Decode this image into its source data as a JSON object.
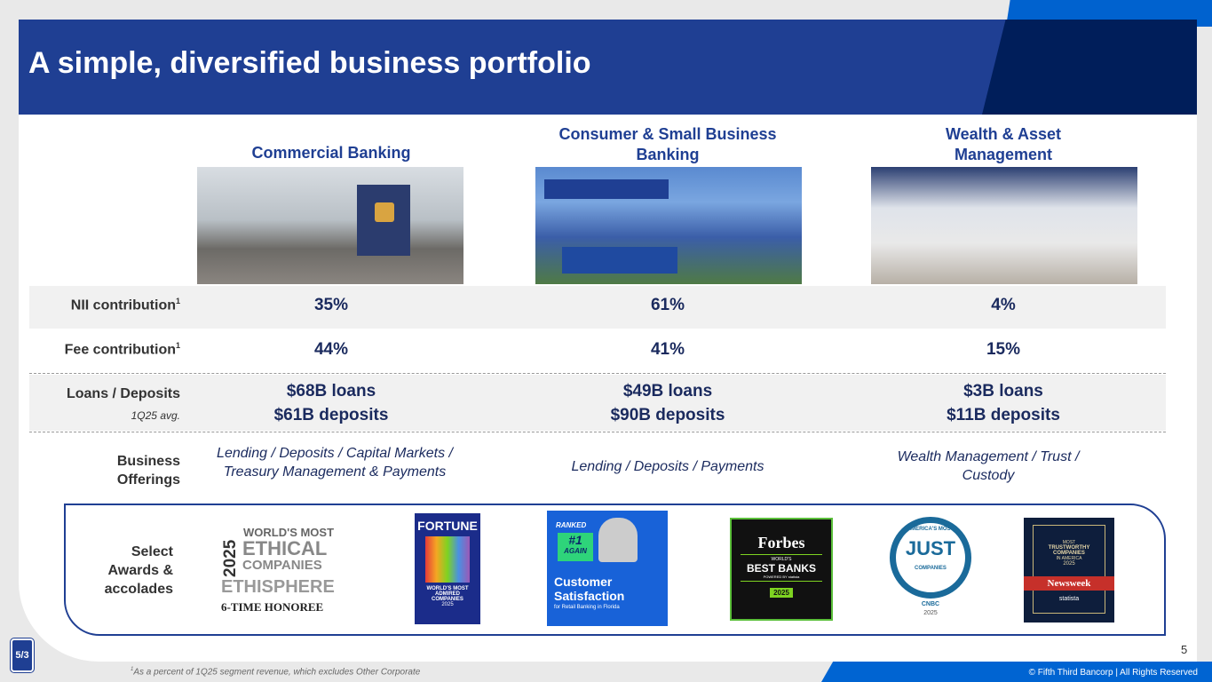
{
  "title": "A simple, diversified business portfolio",
  "columns": [
    {
      "name": "Commercial Banking",
      "nii": "35%",
      "fee": "44%",
      "loans": "$68B loans",
      "deposits": "$61B deposits",
      "offerings": "Lending / Deposits / Capital Markets / Treasury Management & Payments"
    },
    {
      "name": "Consumer & Small Business Banking",
      "nii": "61%",
      "fee": "41%",
      "loans": "$49B loans",
      "deposits": "$90B deposits",
      "offerings": "Lending / Deposits / Payments"
    },
    {
      "name": "Wealth & Asset Management",
      "nii": "4%",
      "fee": "15%",
      "loans": "$3B loans",
      "deposits": "$11B deposits",
      "offerings": "Wealth Management / Trust / Custody"
    }
  ],
  "rows": {
    "nii": "NII contribution",
    "fee": "Fee contribution",
    "sup": "1",
    "loans": "Loans / Deposits",
    "loans_sub": "1Q25 avg.",
    "offerings": "Business Offerings",
    "awards": "Select Awards & accolades"
  },
  "awards": {
    "ethisphere": {
      "year": "2025",
      "l1": "WORLD'S MOST",
      "l2": "ETHICAL",
      "l3": "COMPANIES",
      "l4": "ETHISPHERE",
      "l5": "6-TIME HONOREE"
    },
    "fortune": {
      "brand": "FORTUNE",
      "text": "WORLD'S MOST ADMIRED COMPANIES",
      "year": "2025"
    },
    "jdpower": {
      "ranked": "RANKED",
      "rank": "#1",
      "again": "AGAIN",
      "t1": "Customer",
      "t2": "Satisfaction",
      "sub": "for Retail Banking in Florida"
    },
    "forbes": {
      "brand": "Forbes",
      "l1": "WORLD'S",
      "l2": "BEST BANKS",
      "l3": "POWERED BY statista",
      "year": "2025"
    },
    "just": {
      "top": "AMERICA'S MOST",
      "mid": "JUST",
      "bot": "COMPANIES",
      "cnbc": "CNBC",
      "year": "2025"
    },
    "newsweek": {
      "l1": "MOST",
      "l2": "TRUSTWORTHY COMPANIES",
      "l3": "IN AMERICA",
      "year": "2025",
      "brand": "Newsweek",
      "statista": "statista"
    }
  },
  "page_number": "5",
  "footnote": "As a percent of 1Q25 segment revenue, which excludes Other Corporate",
  "copyright": "© Fifth Third Bancorp | All Rights Reserved",
  "logo": "5/3"
}
